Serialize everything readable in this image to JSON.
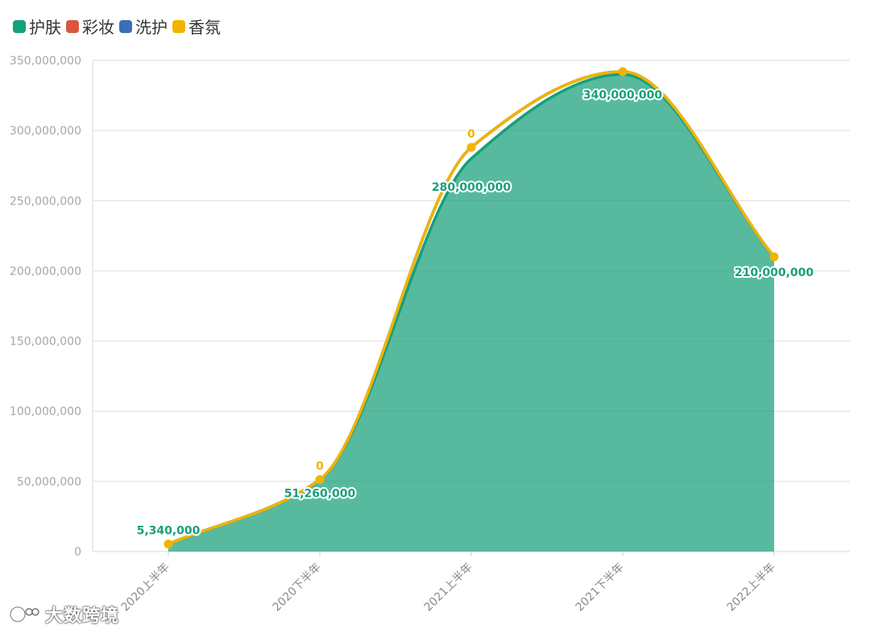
{
  "chart_data": {
    "type": "area",
    "categories": [
      "2020上半年",
      "2020下半年",
      "2021上半年",
      "2021下半年",
      "2022上半年"
    ],
    "ylim": [
      0,
      350000000
    ],
    "yticks": [
      0,
      50000000,
      100000000,
      150000000,
      200000000,
      250000000,
      300000000,
      350000000
    ],
    "ytick_labels": [
      "0",
      "50,000,000",
      "100,000,000",
      "150,000,000",
      "200,000,000",
      "250,000,000",
      "300,000,000",
      "350,000,000"
    ],
    "stacked": true,
    "grid": true,
    "legend_position": "top-left",
    "series": [
      {
        "name": "护肤",
        "color": "#16a07a",
        "values": [
          5340000,
          51260000,
          280000000,
          340000000,
          210000000
        ],
        "labels": [
          "5,340,000",
          "51,260,000",
          "280,000,000",
          "340,000,000",
          "210,000,000"
        ]
      },
      {
        "name": "彩妆",
        "color": "#d9573f",
        "values": [
          0,
          0,
          8000000,
          2000000,
          0
        ]
      },
      {
        "name": "洗护",
        "color": "#3a6fb7",
        "values": [
          0,
          0,
          0,
          0,
          0
        ]
      },
      {
        "name": "香氛",
        "color": "#f0b400",
        "values": [
          0,
          0,
          0,
          0,
          0
        ],
        "labels": [
          "",
          "0",
          "0",
          "",
          ""
        ]
      }
    ]
  },
  "watermark": {
    "text": "大数跨境",
    "icon": "logo-icon"
  }
}
